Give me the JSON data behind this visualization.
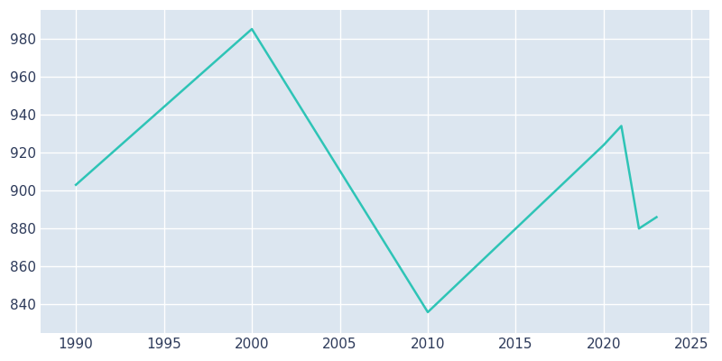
{
  "years": [
    1990,
    2000,
    2010,
    2020,
    2021,
    2022,
    2023
  ],
  "population": [
    903,
    985,
    836,
    924,
    934,
    880,
    886
  ],
  "line_color": "#2EC4B6",
  "background_color": "#DCE6F0",
  "fig_background_color": "#FFFFFF",
  "grid_color": "#FFFFFF",
  "text_color": "#2D3A5A",
  "xlim": [
    1988,
    2026
  ],
  "ylim": [
    825,
    995
  ],
  "xticks": [
    1990,
    1995,
    2000,
    2005,
    2010,
    2015,
    2020,
    2025
  ],
  "yticks": [
    840,
    860,
    880,
    900,
    920,
    940,
    960,
    980
  ],
  "line_width": 1.8,
  "tick_fontsize": 11
}
